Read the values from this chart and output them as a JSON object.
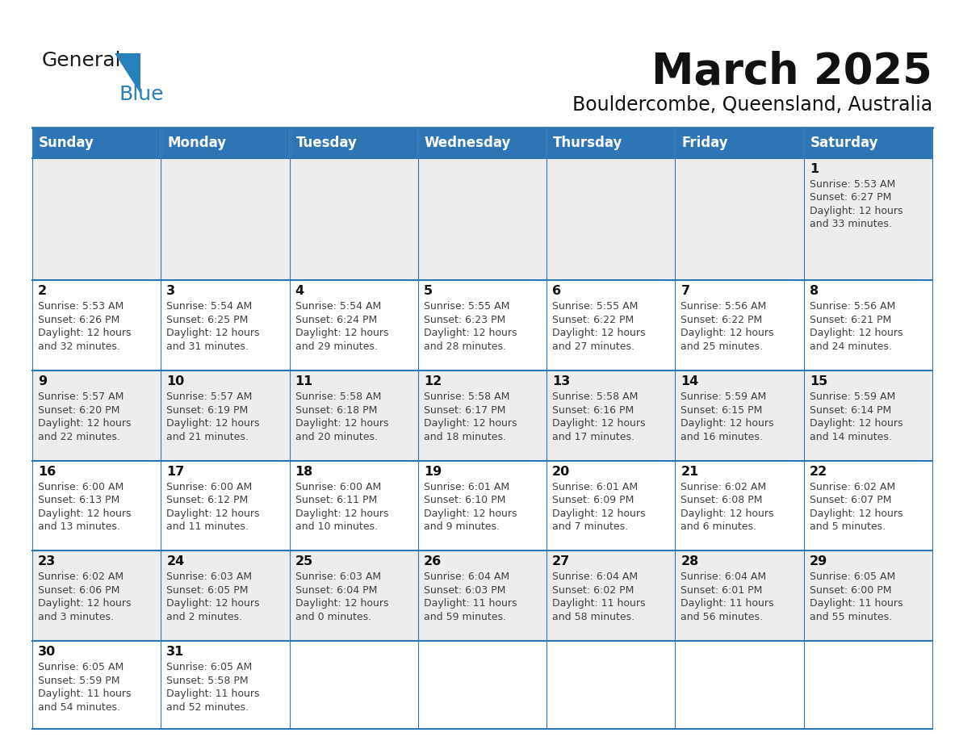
{
  "title": "March 2025",
  "subtitle": "Bouldercombe, Queensland, Australia",
  "header_bg": "#2E75B6",
  "header_text_color": "#FFFFFF",
  "days_of_week": [
    "Sunday",
    "Monday",
    "Tuesday",
    "Wednesday",
    "Thursday",
    "Friday",
    "Saturday"
  ],
  "cell_bg_odd": "#EDEDED",
  "cell_bg_even": "#FFFFFF",
  "border_color": "#2E75B6",
  "text_color": "#404040",
  "day_num_color": "#111111",
  "calendar_data": [
    [
      null,
      null,
      null,
      null,
      null,
      null,
      {
        "day": 1,
        "sunrise": "5:53 AM",
        "sunset": "6:27 PM",
        "daylight_line1": "Daylight: 12 hours",
        "daylight_line2": "and 33 minutes."
      }
    ],
    [
      {
        "day": 2,
        "sunrise": "5:53 AM",
        "sunset": "6:26 PM",
        "daylight_line1": "Daylight: 12 hours",
        "daylight_line2": "and 32 minutes."
      },
      {
        "day": 3,
        "sunrise": "5:54 AM",
        "sunset": "6:25 PM",
        "daylight_line1": "Daylight: 12 hours",
        "daylight_line2": "and 31 minutes."
      },
      {
        "day": 4,
        "sunrise": "5:54 AM",
        "sunset": "6:24 PM",
        "daylight_line1": "Daylight: 12 hours",
        "daylight_line2": "and 29 minutes."
      },
      {
        "day": 5,
        "sunrise": "5:55 AM",
        "sunset": "6:23 PM",
        "daylight_line1": "Daylight: 12 hours",
        "daylight_line2": "and 28 minutes."
      },
      {
        "day": 6,
        "sunrise": "5:55 AM",
        "sunset": "6:22 PM",
        "daylight_line1": "Daylight: 12 hours",
        "daylight_line2": "and 27 minutes."
      },
      {
        "day": 7,
        "sunrise": "5:56 AM",
        "sunset": "6:22 PM",
        "daylight_line1": "Daylight: 12 hours",
        "daylight_line2": "and 25 minutes."
      },
      {
        "day": 8,
        "sunrise": "5:56 AM",
        "sunset": "6:21 PM",
        "daylight_line1": "Daylight: 12 hours",
        "daylight_line2": "and 24 minutes."
      }
    ],
    [
      {
        "day": 9,
        "sunrise": "5:57 AM",
        "sunset": "6:20 PM",
        "daylight_line1": "Daylight: 12 hours",
        "daylight_line2": "and 22 minutes."
      },
      {
        "day": 10,
        "sunrise": "5:57 AM",
        "sunset": "6:19 PM",
        "daylight_line1": "Daylight: 12 hours",
        "daylight_line2": "and 21 minutes."
      },
      {
        "day": 11,
        "sunrise": "5:58 AM",
        "sunset": "6:18 PM",
        "daylight_line1": "Daylight: 12 hours",
        "daylight_line2": "and 20 minutes."
      },
      {
        "day": 12,
        "sunrise": "5:58 AM",
        "sunset": "6:17 PM",
        "daylight_line1": "Daylight: 12 hours",
        "daylight_line2": "and 18 minutes."
      },
      {
        "day": 13,
        "sunrise": "5:58 AM",
        "sunset": "6:16 PM",
        "daylight_line1": "Daylight: 12 hours",
        "daylight_line2": "and 17 minutes."
      },
      {
        "day": 14,
        "sunrise": "5:59 AM",
        "sunset": "6:15 PM",
        "daylight_line1": "Daylight: 12 hours",
        "daylight_line2": "and 16 minutes."
      },
      {
        "day": 15,
        "sunrise": "5:59 AM",
        "sunset": "6:14 PM",
        "daylight_line1": "Daylight: 12 hours",
        "daylight_line2": "and 14 minutes."
      }
    ],
    [
      {
        "day": 16,
        "sunrise": "6:00 AM",
        "sunset": "6:13 PM",
        "daylight_line1": "Daylight: 12 hours",
        "daylight_line2": "and 13 minutes."
      },
      {
        "day": 17,
        "sunrise": "6:00 AM",
        "sunset": "6:12 PM",
        "daylight_line1": "Daylight: 12 hours",
        "daylight_line2": "and 11 minutes."
      },
      {
        "day": 18,
        "sunrise": "6:00 AM",
        "sunset": "6:11 PM",
        "daylight_line1": "Daylight: 12 hours",
        "daylight_line2": "and 10 minutes."
      },
      {
        "day": 19,
        "sunrise": "6:01 AM",
        "sunset": "6:10 PM",
        "daylight_line1": "Daylight: 12 hours",
        "daylight_line2": "and 9 minutes."
      },
      {
        "day": 20,
        "sunrise": "6:01 AM",
        "sunset": "6:09 PM",
        "daylight_line1": "Daylight: 12 hours",
        "daylight_line2": "and 7 minutes."
      },
      {
        "day": 21,
        "sunrise": "6:02 AM",
        "sunset": "6:08 PM",
        "daylight_line1": "Daylight: 12 hours",
        "daylight_line2": "and 6 minutes."
      },
      {
        "day": 22,
        "sunrise": "6:02 AM",
        "sunset": "6:07 PM",
        "daylight_line1": "Daylight: 12 hours",
        "daylight_line2": "and 5 minutes."
      }
    ],
    [
      {
        "day": 23,
        "sunrise": "6:02 AM",
        "sunset": "6:06 PM",
        "daylight_line1": "Daylight: 12 hours",
        "daylight_line2": "and 3 minutes."
      },
      {
        "day": 24,
        "sunrise": "6:03 AM",
        "sunset": "6:05 PM",
        "daylight_line1": "Daylight: 12 hours",
        "daylight_line2": "and 2 minutes."
      },
      {
        "day": 25,
        "sunrise": "6:03 AM",
        "sunset": "6:04 PM",
        "daylight_line1": "Daylight: 12 hours",
        "daylight_line2": "and 0 minutes."
      },
      {
        "day": 26,
        "sunrise": "6:04 AM",
        "sunset": "6:03 PM",
        "daylight_line1": "Daylight: 11 hours",
        "daylight_line2": "and 59 minutes."
      },
      {
        "day": 27,
        "sunrise": "6:04 AM",
        "sunset": "6:02 PM",
        "daylight_line1": "Daylight: 11 hours",
        "daylight_line2": "and 58 minutes."
      },
      {
        "day": 28,
        "sunrise": "6:04 AM",
        "sunset": "6:01 PM",
        "daylight_line1": "Daylight: 11 hours",
        "daylight_line2": "and 56 minutes."
      },
      {
        "day": 29,
        "sunrise": "6:05 AM",
        "sunset": "6:00 PM",
        "daylight_line1": "Daylight: 11 hours",
        "daylight_line2": "and 55 minutes."
      }
    ],
    [
      {
        "day": 30,
        "sunrise": "6:05 AM",
        "sunset": "5:59 PM",
        "daylight_line1": "Daylight: 11 hours",
        "daylight_line2": "and 54 minutes."
      },
      {
        "day": 31,
        "sunrise": "6:05 AM",
        "sunset": "5:58 PM",
        "daylight_line1": "Daylight: 11 hours",
        "daylight_line2": "and 52 minutes."
      },
      null,
      null,
      null,
      null,
      null
    ]
  ],
  "logo_text_general": "General",
  "logo_text_blue": "Blue",
  "logo_color_general": "#1A1A1A",
  "logo_color_blue": "#2980B9",
  "logo_triangle_color": "#2980B9"
}
